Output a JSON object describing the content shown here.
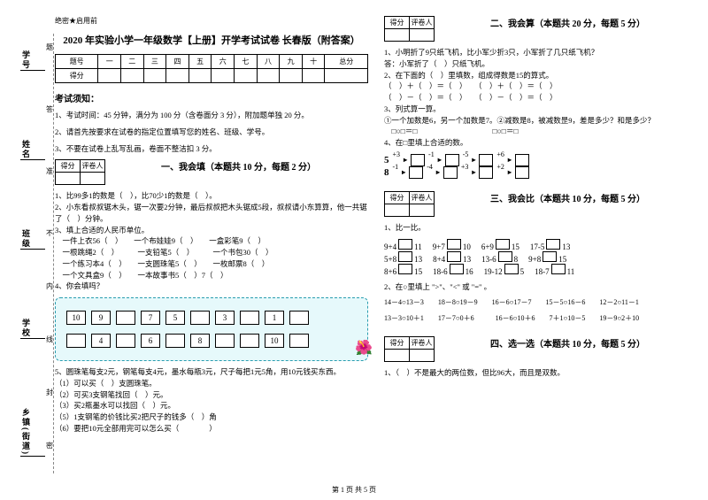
{
  "binding": {
    "labels": [
      "学号",
      "姓名",
      "班级",
      "学校",
      "乡镇(街道)"
    ],
    "sidechars": [
      "题",
      "答",
      "准",
      "不",
      "内",
      "线",
      "封",
      "密"
    ]
  },
  "secret": "绝密★启用前",
  "title": "2020 年实验小学一年级数学【上册】开学考试试卷 长春版（附答案）",
  "header_table": {
    "row1": [
      "题号",
      "一",
      "二",
      "三",
      "四",
      "五",
      "六",
      "七",
      "八",
      "九",
      "十",
      "总分"
    ],
    "row2": [
      "得分",
      "",
      "",
      "",
      "",
      "",
      "",
      "",
      "",
      "",
      "",
      ""
    ]
  },
  "notice_title": "考试须知：",
  "notices": [
    "1、考试时间：45 分钟，满分为 100 分（含卷面分 3 分），附加题单独 20 分。",
    "2、请首先按要求在试卷的指定位置填写您的姓名、班级、学号。",
    "3、不要在试卷上乱写乱画，卷面不整洁扣 3 分。"
  ],
  "score_cells": [
    "得分",
    "评卷人"
  ],
  "sections": {
    "s1": "一、我会填（本题共 10 分，每题 2 分）",
    "s2": "二、我会算（本题共 20 分，每题 5 分）",
    "s3": "三、我会比（本题共 10 分，每题 5 分）",
    "s4": "四、选一选（本题共 10 分，每题 5 分）"
  },
  "q1": [
    "1、比99多1的数是（　），比70少1的数是（　）。",
    "2、小东看叔叔锯木头，锯一次要2分钟，最后叔叔把木头锯成5段，叔叔请小东算算，他一共锯了（　）分钟。",
    "3、填上合适的人民币单位。",
    "　一件上衣56（　）　　一个布娃娃9（　）　　一盒彩笔9（　）",
    "　一根跳绳2（　）　　　一支铅笔5（　）　　　一个书包30（　）",
    "　一个练习本4（　）　　一支圆珠笔5（　）　　一枚邮票8（　）",
    "　一个文具盒9（　）　　一本故事书5（　）7（　）",
    "4、你会填吗？"
  ],
  "tealrows": [
    [
      "10",
      "9",
      "",
      "7",
      "5",
      "",
      "3",
      "",
      "1",
      ""
    ],
    [
      "",
      "4",
      "",
      "6",
      "",
      "8",
      "",
      "",
      "10",
      ""
    ]
  ],
  "q5": [
    "5、圆珠笔每支2元，钢笔每支4元，墨水每瓶3元，尺子每把1元5角，用10元钱买东西。",
    "（1）可以买（　）支圆珠笔。",
    "（2）可买3支钢笔找回（　）元。",
    "（3）买2瓶墨水可以找回（　）元。",
    "（5）1支钢笔的价钱比买2把尺子的钱多（　）角",
    "（6）要把10元全部用完可以怎么买（　　　　）"
  ],
  "q_right_1": [
    "1、小明折了9只纸飞机，比小军少折3只，小军折了几只纸飞机？",
    "",
    "答：小军折了（　）只纸飞机。",
    "2、在下面的（　）里填数，组成得数是15的算式。",
    "（　）＋（　）＝（　）　　（　）＋（　）＝（　）",
    "（　）－（　）＝（　）　　（　）－（　）＝（　）",
    "3、列式算一算。",
    "①一个加数是6，另一个加数是7。②减数是8，被减数昰9，差是多少？和是多少？",
    "　□○□＝□　　　　　　　　　　□○□＝□",
    "4、在□里填上合适的数。"
  ],
  "eq_lines": [
    {
      "start": "5",
      "ops": [
        "+3",
        "-1",
        "-5",
        "+6"
      ]
    },
    {
      "start": "8",
      "ops": [
        "-1",
        "-4",
        "+3",
        "+2"
      ]
    }
  ],
  "compare": {
    "title": "1、比一比。",
    "rows": [
      [
        "9+4",
        "11",
        "9+7",
        "10",
        "6+9",
        "15",
        "17-5",
        "13"
      ],
      [
        "5+8",
        "13",
        "8+4",
        "13",
        "13-6",
        "8",
        "9+8",
        "15"
      ],
      [
        "8+6",
        "15",
        "18-6",
        "16",
        "19-12",
        "5",
        "18-7",
        "11"
      ]
    ],
    "sub": "2、在○里填上 \">\"、\"<\" 或 \"=\" 。",
    "sublines": [
      "14－4○13－3　　18－8○19－9　　16－6○17－7　　15－5○16－6　　12－2○11－1",
      "13－3○10＋1　　17－7○0＋6　　　16－6○10＋6　　7＋1○10－5　　19－9○2＋10"
    ]
  },
  "q4": "1、（　）不是最大的两位数，但比96大，而且是双数。",
  "footer": "第 1 页 共 5 页"
}
